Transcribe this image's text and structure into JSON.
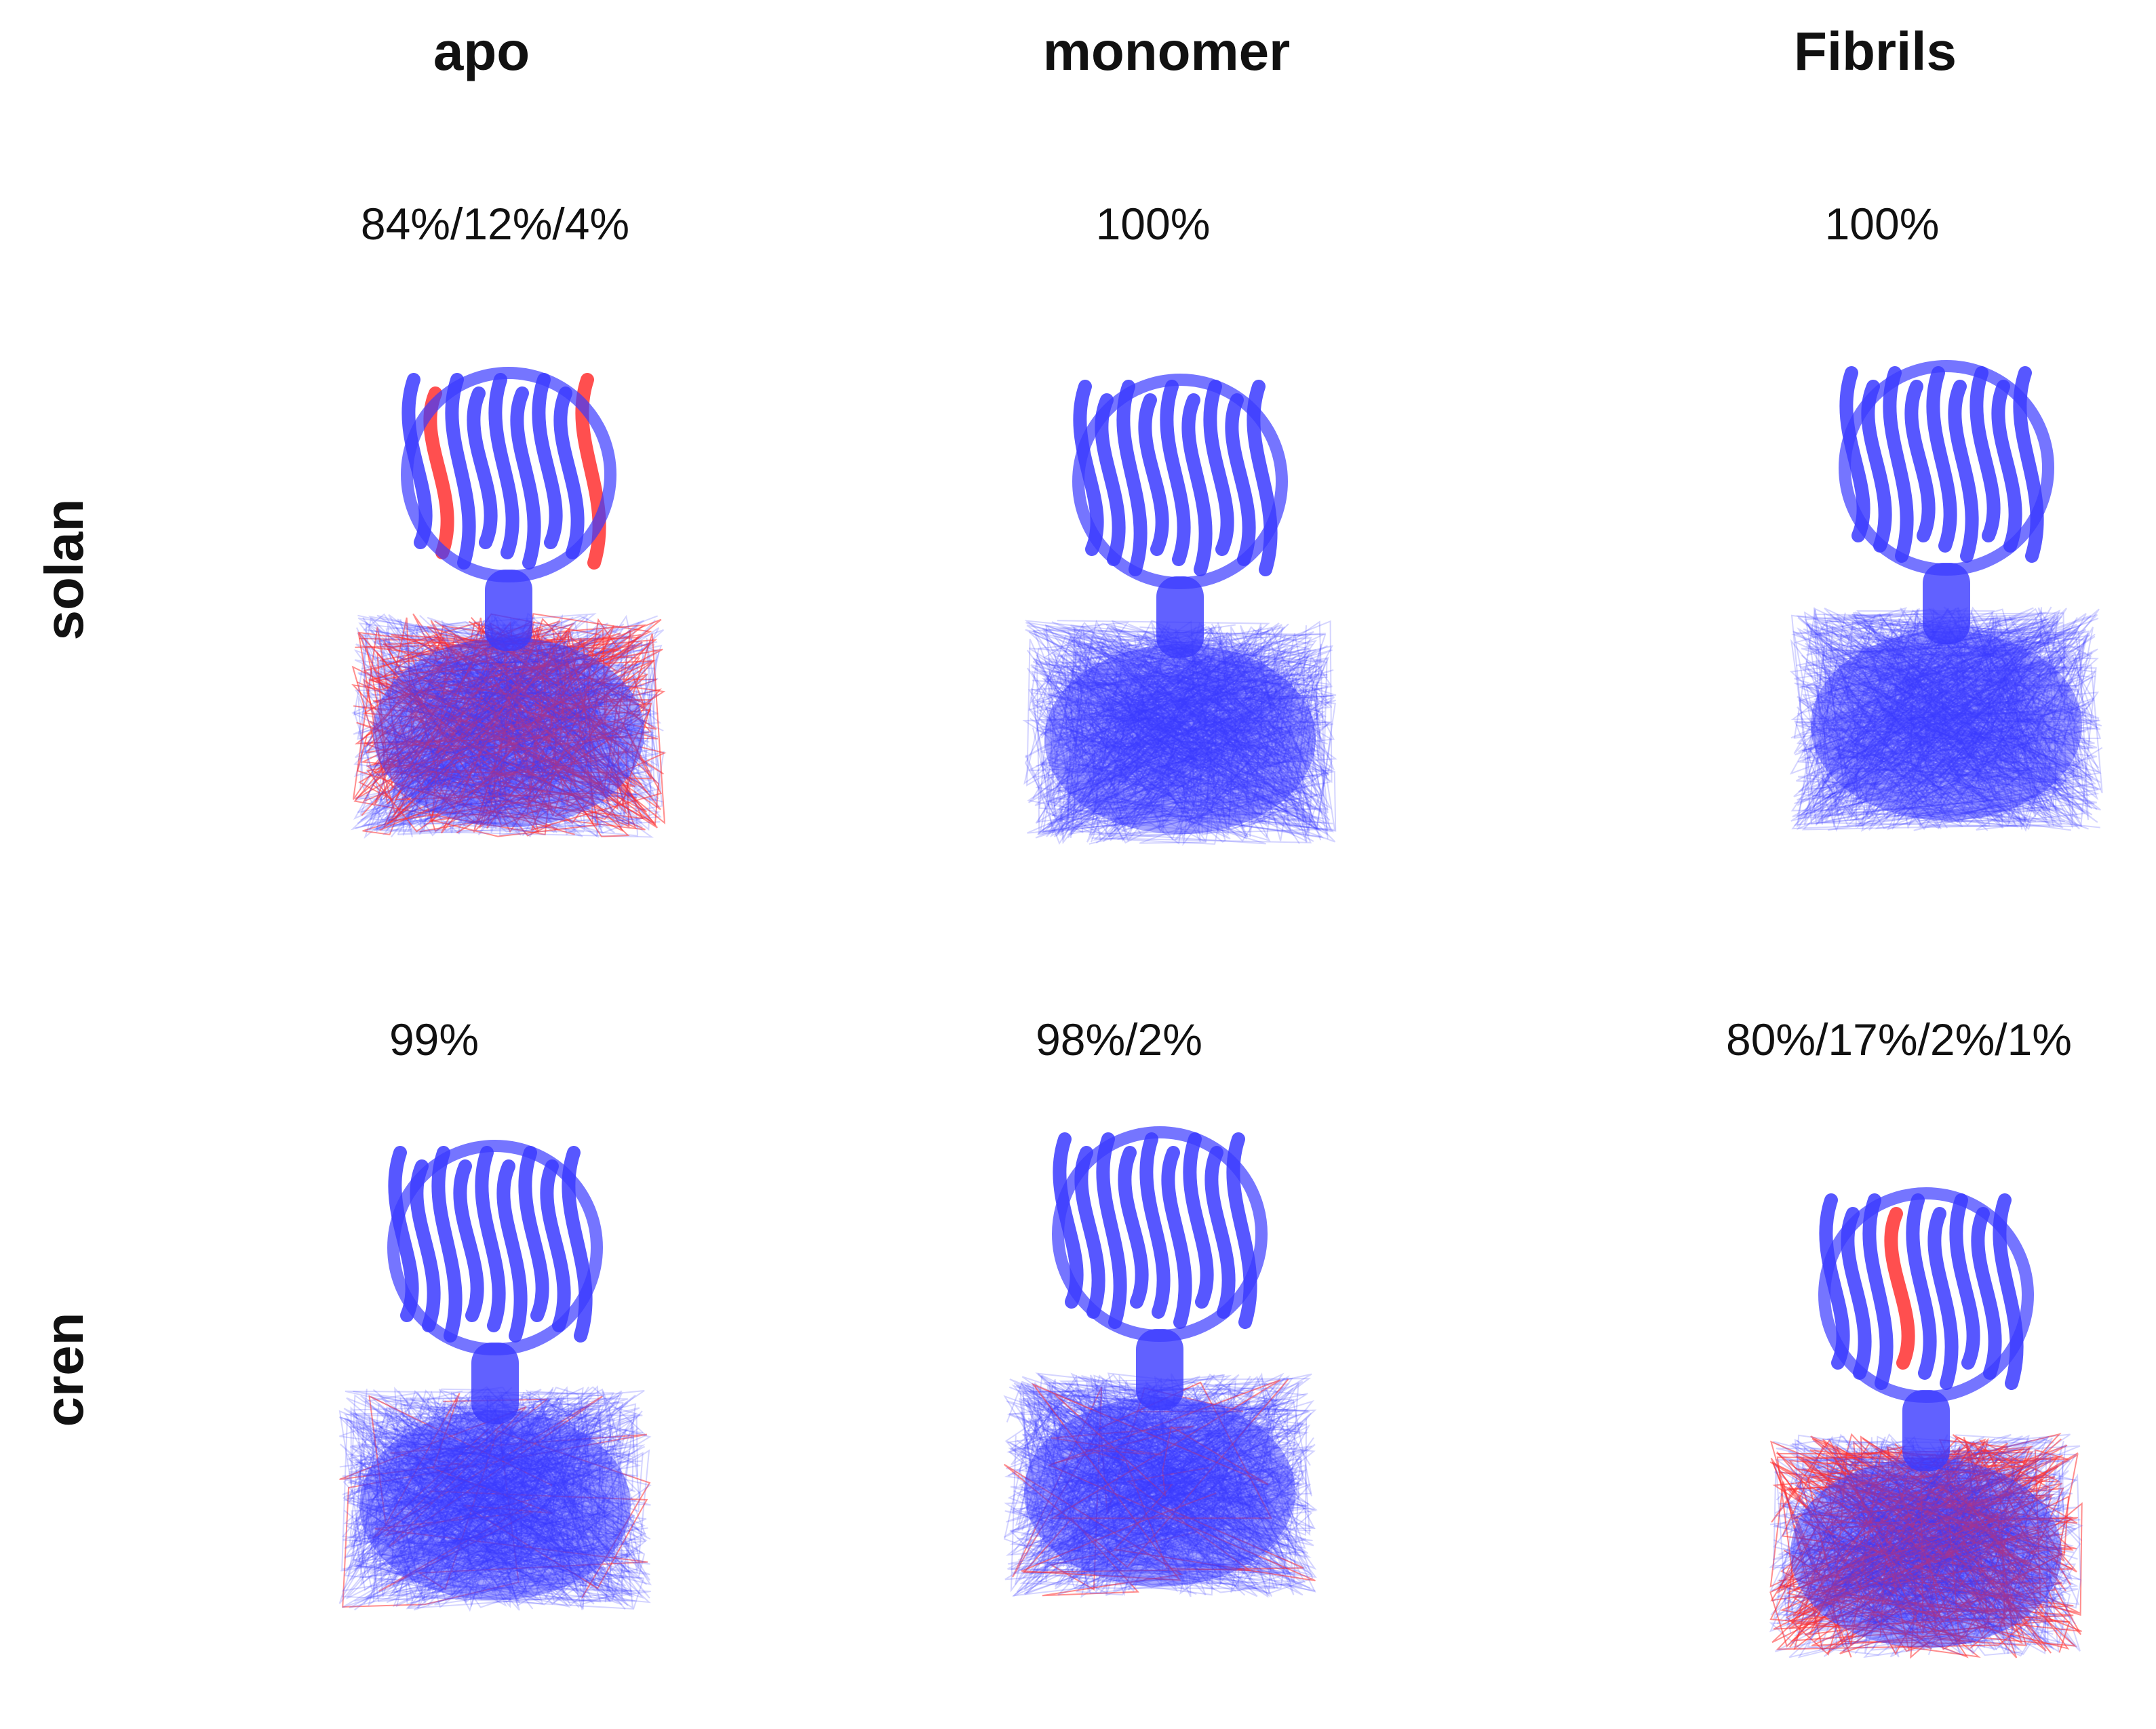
{
  "columns": [
    "apo",
    "monomer",
    "Fibrils"
  ],
  "rows": [
    "solan",
    "cren"
  ],
  "panels": [
    {
      "row": "solan",
      "column": "apo",
      "percentages": "84%/12%/4%",
      "red_fraction": 0.12
    },
    {
      "row": "solan",
      "column": "monomer",
      "percentages": "100%",
      "red_fraction": 0
    },
    {
      "row": "solan",
      "column": "Fibrils",
      "percentages": "100%",
      "red_fraction": 0
    },
    {
      "row": "cren",
      "column": "apo",
      "percentages": "99%",
      "red_fraction": 0.01
    },
    {
      "row": "cren",
      "column": "monomer",
      "percentages": "98%/2%",
      "red_fraction": 0.02
    },
    {
      "row": "cren",
      "column": "Fibrils",
      "percentages": "80%/17%/2%/1%",
      "red_fraction": 0.17
    }
  ],
  "colors": {
    "dominant_cluster": "#3a3aff",
    "secondary_cluster": "#ff3030",
    "minor_cluster": "#7a8a6a"
  }
}
